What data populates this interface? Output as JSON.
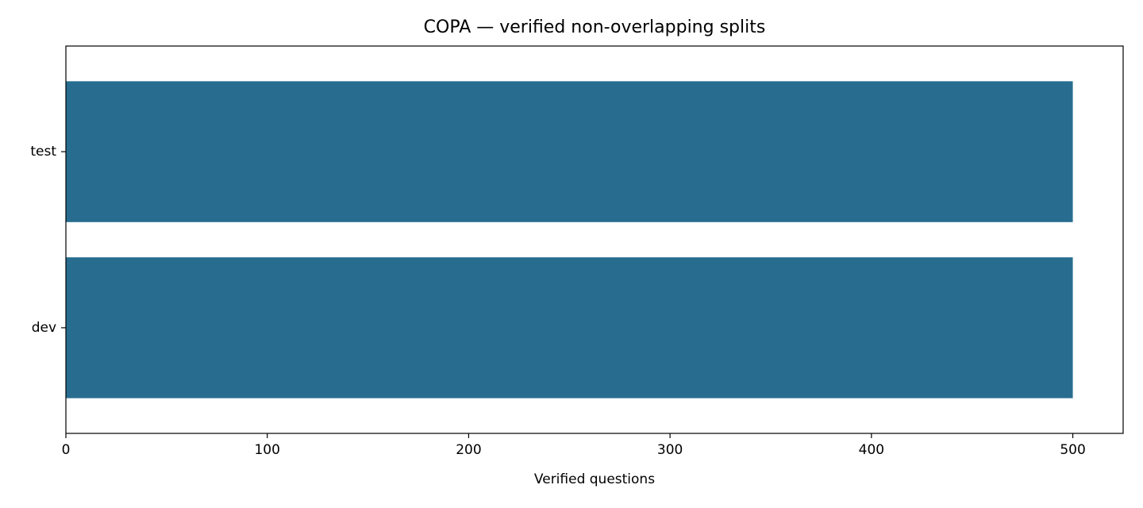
{
  "chart_data": {
    "type": "barh",
    "title": "COPA — verified non-overlapping splits",
    "xlabel": "Verified questions",
    "categories": [
      "dev",
      "test"
    ],
    "values": [
      500,
      500
    ],
    "color": "#286d8f",
    "xlim": [
      0,
      525
    ],
    "xticks": [
      0,
      100,
      200,
      300,
      400,
      500
    ]
  }
}
